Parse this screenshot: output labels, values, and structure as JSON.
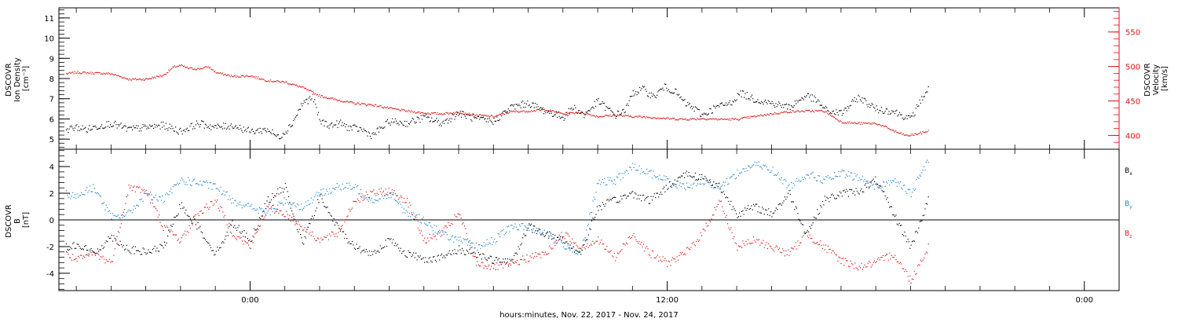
{
  "chart_data": [
    {
      "type": "scatter",
      "panel": "plasma",
      "ylabel_left": [
        "DSCOVR",
        "Ion Density",
        "[cm⁻³]"
      ],
      "ylabel_right": [
        "DSCOVR",
        "Velocity",
        "[km/s]"
      ],
      "ylim_left": [
        4.5,
        11.5
      ],
      "yticks_left": [
        5,
        6,
        7,
        8,
        9,
        10,
        11
      ],
      "ylim_right": [
        380,
        585
      ],
      "yticks_right": [
        400,
        450,
        500,
        550
      ],
      "colors": {
        "density": "#000000",
        "velocity": "#dd1111"
      },
      "series": [
        {
          "name": "Ion Density",
          "axis": "left",
          "color": "#000000",
          "x_hours": [
            -5.3,
            -5.0,
            -4.7,
            -4.3,
            -4.0,
            -3.5,
            -3.0,
            -2.5,
            -2.0,
            -1.5,
            -1.0,
            -0.5,
            0.0,
            0.5,
            0.8,
            1.0,
            1.2,
            1.5,
            1.8,
            2.0,
            2.3,
            2.6,
            2.8,
            3.2,
            3.5,
            3.8,
            4.0,
            4.5,
            5.0,
            5.5,
            6.0,
            6.5,
            7.0,
            7.5,
            8.0,
            8.5,
            9.0,
            9.3,
            9.6,
            10.0,
            10.5,
            10.8,
            11.0,
            11.3,
            11.6,
            11.9,
            12.2,
            12.5,
            12.8,
            13.0,
            13.4,
            13.8,
            14.1,
            14.5,
            15.0,
            15.5,
            16.0,
            16.3,
            16.6,
            17.0,
            17.5,
            18.0,
            18.5,
            19.0,
            19.3,
            19.5
          ],
          "y": [
            5.5,
            5.6,
            5.5,
            5.7,
            5.8,
            5.5,
            5.6,
            5.7,
            5.4,
            5.8,
            5.6,
            5.7,
            5.4,
            5.5,
            5.1,
            5.4,
            5.8,
            6.8,
            7.1,
            5.9,
            5.7,
            5.8,
            5.6,
            5.5,
            5.2,
            5.6,
            5.9,
            5.8,
            6.1,
            5.8,
            6.3,
            6.0,
            5.9,
            6.6,
            6.8,
            6.4,
            6.1,
            6.6,
            6.2,
            6.9,
            6.2,
            6.5,
            7.3,
            7.5,
            7.1,
            7.6,
            7.4,
            6.8,
            6.5,
            6.2,
            6.6,
            6.8,
            7.3,
            7.0,
            6.8,
            6.6,
            7.2,
            6.9,
            6.4,
            6.3,
            7.1,
            6.5,
            6.4,
            6.0,
            7.0,
            7.5
          ]
        },
        {
          "name": "Velocity",
          "axis": "right",
          "color": "#dd1111",
          "x_hours": [
            -5.3,
            -5.0,
            -4.5,
            -4.0,
            -3.5,
            -3.0,
            -2.5,
            -2.2,
            -2.0,
            -1.8,
            -1.5,
            -1.2,
            -1.0,
            -0.5,
            0.0,
            0.5,
            1.0,
            1.5,
            2.0,
            2.5,
            3.0,
            3.5,
            4.0,
            4.5,
            5.0,
            5.5,
            6.0,
            6.5,
            7.0,
            7.5,
            8.0,
            8.5,
            9.0,
            9.5,
            10.0,
            10.5,
            11.0,
            11.5,
            12.0,
            12.5,
            13.0,
            13.5,
            14.0,
            14.5,
            15.0,
            15.5,
            16.0,
            16.5,
            17.0,
            17.5,
            18.0,
            18.3,
            18.6,
            18.9,
            19.2,
            19.5
          ],
          "y": [
            490,
            492,
            491,
            490,
            482,
            482,
            488,
            500,
            502,
            498,
            497,
            500,
            492,
            486,
            487,
            480,
            478,
            470,
            458,
            452,
            447,
            445,
            440,
            436,
            433,
            432,
            434,
            430,
            428,
            435,
            436,
            438,
            432,
            434,
            428,
            430,
            428,
            427,
            425,
            424,
            425,
            424,
            424,
            428,
            432,
            435,
            436,
            436,
            420,
            418,
            418,
            412,
            405,
            400,
            403,
            407
          ]
        }
      ]
    },
    {
      "type": "scatter",
      "panel": "magnetic-field",
      "ylabel": [
        "DSCOVR",
        "B",
        "[nT]"
      ],
      "ylim": [
        -5.3,
        5.3
      ],
      "yticks": [
        -4,
        -2,
        0,
        2,
        4
      ],
      "legend_placement": "right",
      "colors": {
        "Bx": "#000000",
        "By": "#1f7fd4",
        "Bz": "#dd1111",
        "zero_line": "#000000"
      },
      "series": [
        {
          "name": "Bx",
          "legend": "B",
          "subscript": "x",
          "color": "#000000",
          "x_hours": [
            -5.3,
            -5.0,
            -4.5,
            -4.0,
            -3.5,
            -3.0,
            -2.5,
            -2.0,
            -1.5,
            -1.0,
            -0.5,
            0.0,
            0.5,
            1.0,
            1.5,
            2.0,
            2.5,
            3.0,
            3.5,
            4.0,
            4.5,
            5.0,
            5.5,
            6.0,
            6.5,
            7.0,
            7.5,
            8.0,
            8.5,
            9.0,
            9.5,
            10.0,
            10.5,
            11.0,
            11.5,
            12.0,
            12.5,
            13.0,
            13.5,
            14.0,
            14.5,
            15.0,
            15.5,
            16.0,
            16.5,
            17.0,
            17.5,
            18.0,
            18.5,
            19.0,
            19.5
          ],
          "y": [
            -2.0,
            -1.8,
            -2.5,
            -1.2,
            -2.2,
            -2.4,
            -2.0,
            1.2,
            -0.5,
            -2.5,
            -0.2,
            -1.5,
            1.5,
            2.5,
            -1.8,
            1.8,
            -0.5,
            -2.0,
            -2.5,
            -1.5,
            -2.5,
            -2.9,
            -2.8,
            -2.2,
            -2.5,
            -3.0,
            -3.2,
            -0.5,
            -1.0,
            -1.5,
            -2.5,
            1.0,
            1.5,
            2.0,
            1.5,
            2.5,
            3.5,
            3.2,
            2.5,
            0.5,
            1.0,
            0.5,
            2.0,
            -1.0,
            1.5,
            2.0,
            2.2,
            3.0,
            0.5,
            -2.0,
            1.5
          ]
        },
        {
          "name": "By",
          "legend": "B",
          "subscript": "y",
          "color": "#1f7fd4",
          "x_hours": [
            -5.3,
            -5.0,
            -4.5,
            -4.0,
            -3.5,
            -3.0,
            -2.5,
            -2.0,
            -1.5,
            -1.0,
            -0.5,
            0.0,
            0.5,
            1.0,
            1.5,
            2.0,
            2.5,
            3.0,
            3.5,
            4.0,
            4.5,
            5.0,
            5.5,
            6.0,
            6.5,
            7.0,
            7.5,
            8.0,
            8.5,
            9.0,
            9.5,
            10.0,
            10.5,
            11.0,
            11.5,
            12.0,
            12.5,
            13.0,
            13.5,
            14.0,
            14.5,
            15.0,
            15.5,
            16.0,
            16.5,
            17.0,
            17.5,
            18.0,
            18.5,
            19.0,
            19.5
          ],
          "y": [
            2.0,
            1.8,
            2.5,
            0.2,
            0.5,
            2.0,
            1.5,
            3.0,
            2.8,
            2.5,
            1.5,
            1.0,
            0.5,
            1.5,
            1.0,
            2.0,
            2.5,
            2.5,
            1.5,
            2.0,
            0.5,
            0.0,
            -1.0,
            -1.5,
            -2.0,
            -1.5,
            -0.5,
            -0.5,
            -1.0,
            -1.8,
            -2.5,
            2.8,
            3.0,
            4.0,
            3.5,
            3.0,
            2.5,
            3.0,
            2.5,
            3.5,
            4.2,
            3.8,
            2.5,
            3.5,
            3.0,
            3.5,
            3.2,
            2.5,
            3.0,
            2.0,
            4.5
          ]
        },
        {
          "name": "Bz",
          "legend": "B",
          "subscript": "z",
          "color": "#dd1111",
          "x_hours": [
            -5.3,
            -5.0,
            -4.5,
            -4.0,
            -3.5,
            -3.0,
            -2.5,
            -2.0,
            -1.5,
            -1.0,
            -0.5,
            0.0,
            0.5,
            1.0,
            1.5,
            2.0,
            2.5,
            3.0,
            3.5,
            4.0,
            4.5,
            5.0,
            5.5,
            6.0,
            6.5,
            7.0,
            7.5,
            8.0,
            8.5,
            9.0,
            9.5,
            10.0,
            10.5,
            11.0,
            11.5,
            12.0,
            12.5,
            13.0,
            13.5,
            14.0,
            14.5,
            15.0,
            15.5,
            16.0,
            16.5,
            17.0,
            17.5,
            18.0,
            18.5,
            19.0,
            19.5
          ],
          "y": [
            -2.5,
            -3.0,
            -2.5,
            -3.2,
            2.5,
            2.2,
            -0.5,
            -1.5,
            0.5,
            1.5,
            -1.0,
            -2.0,
            1.0,
            0.5,
            -0.5,
            -1.5,
            -1.0,
            1.5,
            2.0,
            2.2,
            1.5,
            -1.5,
            -1.0,
            0.5,
            -3.2,
            -3.5,
            -3.3,
            -2.8,
            -2.5,
            -1.0,
            -2.0,
            -1.5,
            -2.8,
            -1.0,
            -2.5,
            -3.2,
            -2.5,
            -1.0,
            1.5,
            -2.0,
            -1.5,
            -2.0,
            -2.5,
            -1.0,
            -2.0,
            -3.0,
            -3.5,
            -3.2,
            -2.5,
            -4.5,
            -2.0
          ]
        }
      ]
    }
  ],
  "xaxis": {
    "label": "hours:minutes, Nov. 22, 2017 - Nov. 24, 2017",
    "ticks": [
      {
        "hour": 0,
        "label": "0:00"
      },
      {
        "hour": 12,
        "label": "12:00"
      },
      {
        "hour": 24,
        "label": "0:00"
      }
    ],
    "xlim_hours": [
      -5.5,
      25.0
    ]
  }
}
